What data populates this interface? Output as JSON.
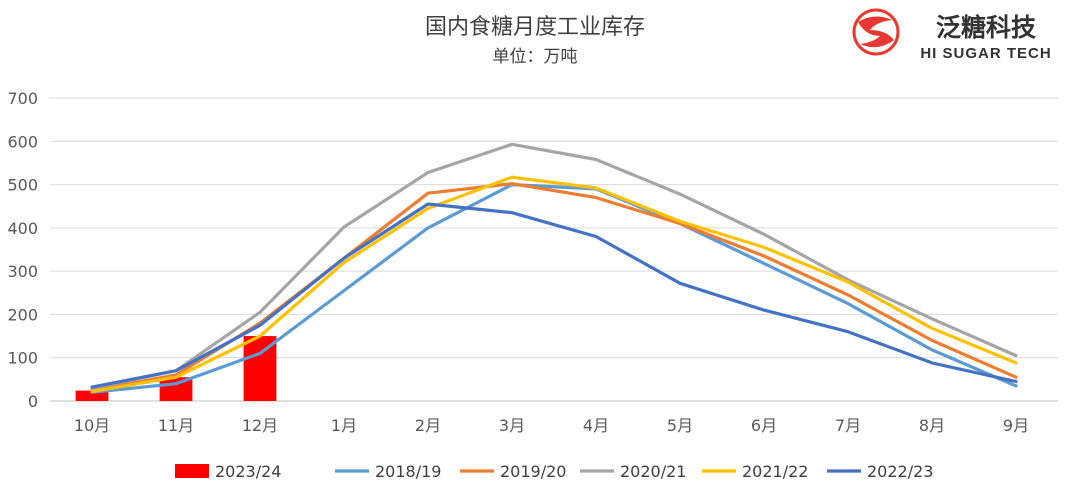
{
  "logo": {
    "brand_cn": "泛糖科技",
    "brand_en": "HI SUGAR TECH",
    "color": "#e8382f"
  },
  "chart_data": {
    "type": "line",
    "title": "国内食糖月度工业库存",
    "subtitle": "单位：万吨",
    "xlabel": "",
    "ylabel": "",
    "ylim": [
      0,
      700
    ],
    "yticks": [
      0,
      100,
      200,
      300,
      400,
      500,
      600,
      700
    ],
    "grid": true,
    "legend_position": "bottom",
    "categories": [
      "10月",
      "11月",
      "12月",
      "1月",
      "2月",
      "3月",
      "4月",
      "5月",
      "6月",
      "7月",
      "8月",
      "9月"
    ],
    "bars": {
      "name": "2023/24",
      "color": "#ff0000",
      "values": [
        24,
        55,
        150,
        null,
        null,
        null,
        null,
        null,
        null,
        null,
        null,
        null
      ]
    },
    "series": [
      {
        "name": "2018/19",
        "color": "#5b9bd5",
        "values": [
          20,
          40,
          110,
          255,
          400,
          500,
          490,
          410,
          318,
          225,
          118,
          35
        ]
      },
      {
        "name": "2019/20",
        "color": "#ed7d31",
        "values": [
          25,
          60,
          180,
          330,
          480,
          502,
          470,
          410,
          335,
          245,
          140,
          55
        ]
      },
      {
        "name": "2020/21",
        "color": "#a5a5a5",
        "values": [
          30,
          70,
          205,
          402,
          528,
          593,
          558,
          478,
          385,
          280,
          190,
          105
        ]
      },
      {
        "name": "2021/22",
        "color": "#ffc000",
        "values": [
          22,
          55,
          150,
          320,
          445,
          517,
          492,
          415,
          355,
          275,
          168,
          88
        ]
      },
      {
        "name": "2022/23",
        "color": "#4472c4",
        "values": [
          32,
          70,
          175,
          330,
          455,
          435,
          380,
          272,
          210,
          160,
          88,
          45
        ]
      }
    ]
  }
}
